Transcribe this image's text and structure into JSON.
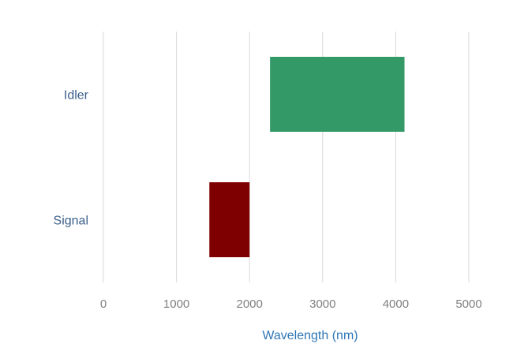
{
  "chart_data": {
    "type": "bar",
    "orientation": "horizontal",
    "subtype": "floating-range",
    "title": "",
    "xlabel": "Wavelength (nm)",
    "ylabel": "",
    "xlim": [
      0,
      5000
    ],
    "x_ticks": [
      0,
      1000,
      2000,
      3000,
      4000,
      5000
    ],
    "x_tick_labels": [
      "0",
      "1000",
      "2000",
      "3000",
      "4000",
      "5000"
    ],
    "grid": "vertical",
    "categories": [
      "Signal",
      "Idler"
    ],
    "ranges": [
      {
        "category": "Signal",
        "start": 1450,
        "end": 2000,
        "color": "#7f0000"
      },
      {
        "category": "Idler",
        "start": 2280,
        "end": 4120,
        "color": "#339966"
      }
    ]
  }
}
